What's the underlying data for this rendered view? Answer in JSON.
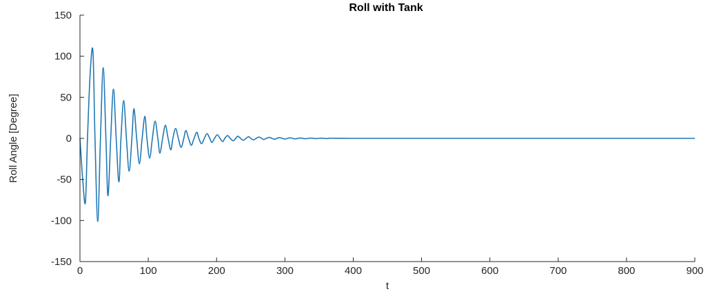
{
  "chart_data": {
    "type": "line",
    "title": "Roll with Tank",
    "xlabel": "t",
    "ylabel": "Roll Angle [Degree]",
    "xlim": [
      0,
      900
    ],
    "ylim": [
      -150,
      150
    ],
    "xticks": [
      0,
      100,
      200,
      300,
      400,
      500,
      600,
      700,
      800,
      900
    ],
    "yticks": [
      150,
      100,
      50,
      0,
      -50,
      -100,
      -150
    ],
    "xtick_labels": [
      "0",
      "100",
      "200",
      "300",
      "400",
      "500",
      "600",
      "700",
      "800",
      "900"
    ],
    "ytick_labels": [
      "150",
      "100",
      "50",
      "0",
      "-50",
      "-100",
      "-150"
    ],
    "grid": false,
    "series": [
      {
        "color": "#1f77b4",
        "x": [
          0,
          4,
          8,
          11,
          15,
          19,
          22,
          26,
          30,
          34,
          38,
          41,
          45,
          49,
          53,
          57,
          60,
          64,
          68,
          72,
          76,
          79,
          83,
          87,
          91,
          95,
          98,
          102,
          106,
          110,
          114,
          117,
          121,
          125,
          129,
          133,
          136,
          140,
          144,
          148,
          152,
          155,
          159,
          163,
          167,
          171,
          174,
          178,
          182,
          186,
          190,
          193,
          197,
          201,
          205,
          209,
          212,
          216,
          220,
          224,
          228,
          231,
          235,
          239,
          243,
          247,
          250,
          254,
          258,
          262,
          266,
          269,
          273,
          277,
          281,
          285,
          288,
          292,
          296,
          300,
          304,
          307,
          311,
          315,
          319,
          323,
          326,
          330,
          334,
          338,
          342,
          345,
          349,
          353,
          357,
          361,
          364,
          368,
          400,
          500,
          600,
          700,
          800,
          900
        ],
        "y": [
          0,
          -50,
          -78,
          0,
          80,
          106,
          0,
          -101,
          0,
          86,
          0,
          -70,
          0,
          60,
          0,
          -53,
          0,
          46,
          0,
          -40,
          0,
          36,
          0,
          -31,
          0,
          27,
          0,
          -24,
          0,
          21,
          0,
          -18,
          0,
          16,
          0,
          -14,
          0,
          12,
          0,
          -11,
          0,
          9.5,
          0,
          -8.4,
          0,
          7.4,
          0,
          -6.5,
          0,
          5.7,
          0,
          -5,
          0,
          4.4,
          0,
          -3.9,
          0,
          3.4,
          0,
          -3,
          0,
          2.7,
          0,
          -2.3,
          0,
          2,
          0,
          -1.8,
          0,
          1.6,
          0,
          -1.4,
          0,
          1.2,
          0,
          -1.1,
          0,
          0.9,
          0,
          -0.8,
          0,
          0.7,
          0,
          -0.6,
          0,
          0.5,
          0,
          -0.45,
          0,
          0.4,
          0,
          -0.35,
          0,
          0.3,
          0,
          -0.25,
          0,
          0.2,
          0,
          0,
          0,
          0,
          0,
          0
        ]
      }
    ]
  }
}
